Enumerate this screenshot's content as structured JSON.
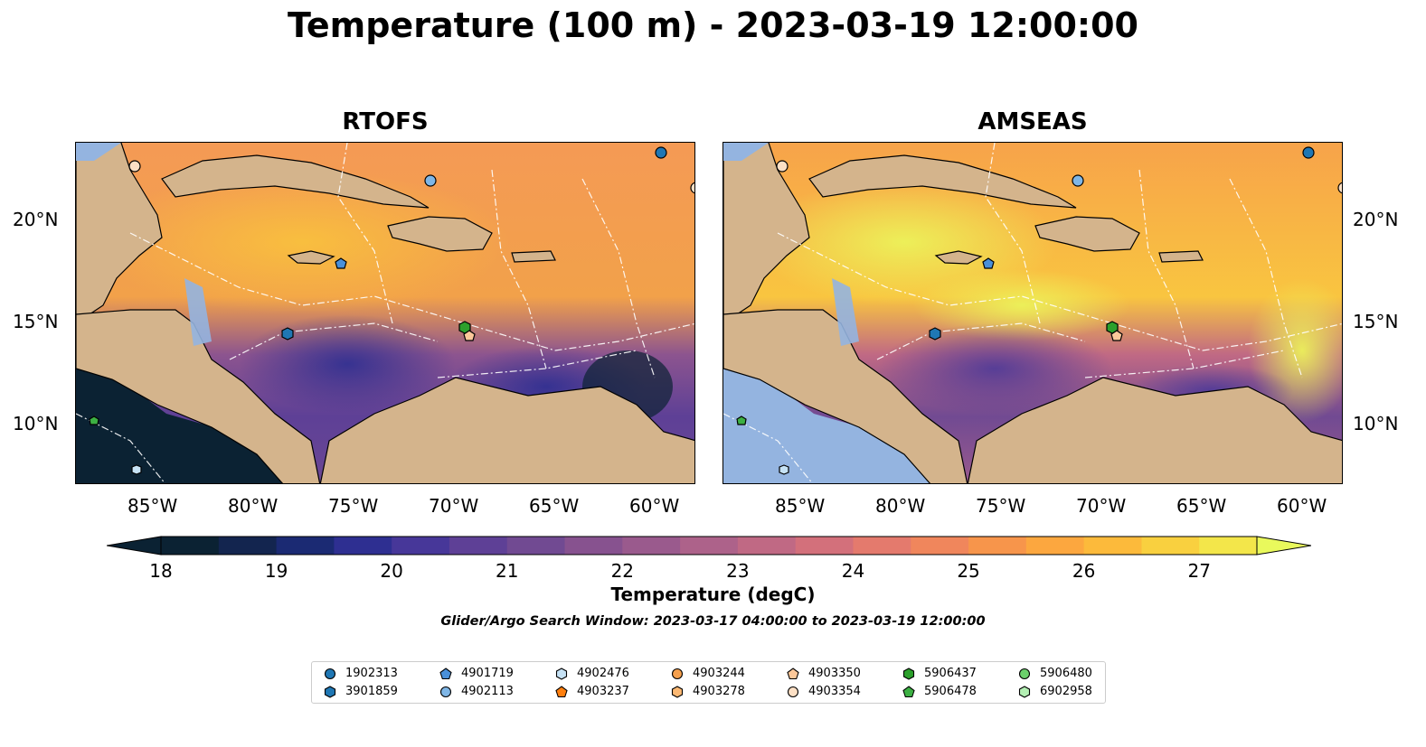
{
  "title": "Temperature (100 m) - 2023-03-19 12:00:00",
  "panels": [
    {
      "title": "RTOFS"
    },
    {
      "title": "AMSEAS"
    }
  ],
  "axes": {
    "lat_ticks": [
      "20°N",
      "15°N",
      "10°N"
    ],
    "lon_ticks": [
      "85°W",
      "80°W",
      "75°W",
      "70°W",
      "65°W",
      "60°W"
    ]
  },
  "colorbar": {
    "label": "Temperature (degC)",
    "ticks": [
      "18",
      "19",
      "20",
      "21",
      "22",
      "23",
      "24",
      "25",
      "26",
      "27"
    ],
    "colors": [
      "#0b2233",
      "#13254f",
      "#1b2a73",
      "#2e2f91",
      "#473799",
      "#5e4096",
      "#714a92",
      "#87528f",
      "#9a5a8d",
      "#ad628a",
      "#c06984",
      "#d3707b",
      "#e47a6d",
      "#f0865c",
      "#f7954b",
      "#fca73f",
      "#fcba3b",
      "#f9d03f",
      "#f3e64a"
    ],
    "under_color": "#0b2233",
    "over_color": "#e9f95c"
  },
  "search_window": "Glider/Argo Search Window: 2023-03-17 04:00:00 to 2023-03-19 12:00:00",
  "legend": [
    {
      "id": "1902313",
      "marker": "circle",
      "color": "#1f77b4"
    },
    {
      "id": "3901859",
      "marker": "hexagon",
      "color": "#1f77b4"
    },
    {
      "id": "4901719",
      "marker": "pentagon",
      "color": "#4a90d9"
    },
    {
      "id": "4902113",
      "marker": "circle",
      "color": "#7fb6e6"
    },
    {
      "id": "4902476",
      "marker": "hexagon",
      "color": "#c6e2f5"
    },
    {
      "id": "4903237",
      "marker": "pentagon",
      "color": "#ff7f0e"
    },
    {
      "id": "4903244",
      "marker": "circle",
      "color": "#f6a04d"
    },
    {
      "id": "4903278",
      "marker": "hexagon",
      "color": "#fbb873"
    },
    {
      "id": "4903350",
      "marker": "pentagon",
      "color": "#fcc89a"
    },
    {
      "id": "4903354",
      "marker": "circle",
      "color": "#fde0c5"
    },
    {
      "id": "5906437",
      "marker": "hexagon",
      "color": "#2ca02c"
    },
    {
      "id": "5906478",
      "marker": "pentagon",
      "color": "#3cb043"
    },
    {
      "id": "5906480",
      "marker": "circle",
      "color": "#6cd06c"
    },
    {
      "id": "6902958",
      "marker": "hexagon",
      "color": "#b3efb3"
    }
  ]
}
